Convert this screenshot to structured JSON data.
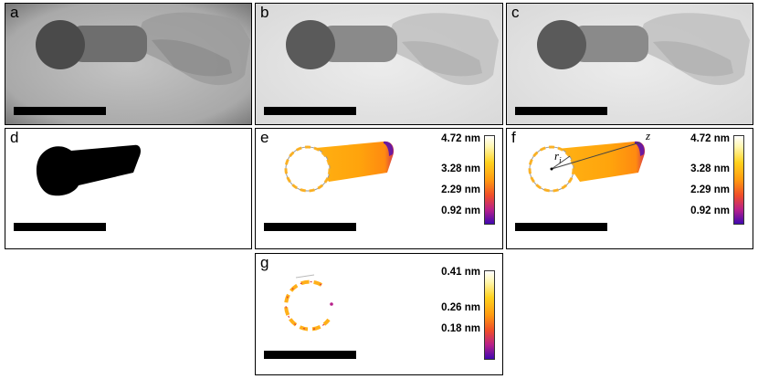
{
  "panels": {
    "a": {
      "label": "a"
    },
    "b": {
      "label": "b"
    },
    "c": {
      "label": "c"
    },
    "d": {
      "label": "d"
    },
    "e": {
      "label": "e",
      "colorbar": {
        "ticks": [
          "4.72 nm",
          "3.28 nm",
          "2.29 nm",
          "0.92 nm"
        ]
      }
    },
    "f": {
      "label": "f",
      "colorbar": {
        "ticks": [
          "4.72 nm",
          "3.28 nm",
          "2.29 nm",
          "0.92 nm"
        ]
      },
      "annotations": {
        "z": "z",
        "r": "r",
        "r_sub": "i"
      }
    },
    "g": {
      "label": "g",
      "colorbar": {
        "ticks": [
          "0.41 nm",
          "0.26 nm",
          "0.18 nm"
        ]
      }
    }
  },
  "colors": {
    "colormap": [
      "#ffffff",
      "#fff36a",
      "#ffc21a",
      "#ff8a0a",
      "#e0393a",
      "#9a1a8a",
      "#4b0aa8"
    ]
  }
}
